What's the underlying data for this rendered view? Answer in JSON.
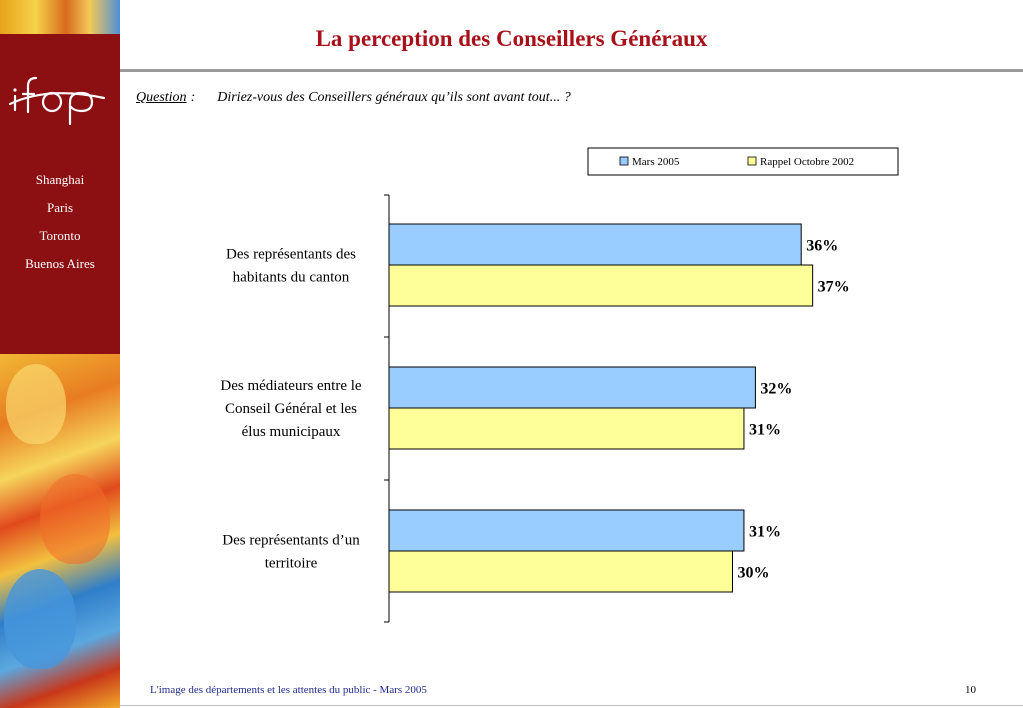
{
  "title": "La perception des Conseillers Généraux",
  "question": {
    "label": "Question",
    "separator": ":",
    "text": "Diriez-vous des Conseillers généraux qu’ils sont avant tout... ?"
  },
  "sidebar": {
    "cities": [
      "Shanghai",
      "Paris",
      "Toronto",
      "Buenos Aires"
    ]
  },
  "colors": {
    "brand_red": "#8c0f12",
    "title_red": "#a8111a",
    "series_blue": "#99ccff",
    "series_yellow": "#ffff99"
  },
  "chart_data": {
    "type": "bar",
    "orientation": "horizontal",
    "categories": [
      [
        "Des représentants des",
        "habitants du canton"
      ],
      [
        "Des médiateurs entre le",
        "Conseil Général et les",
        "élus municipaux"
      ],
      [
        "Des représentants d’un",
        "territoire"
      ]
    ],
    "series": [
      {
        "name": "Mars 2005",
        "values": [
          36,
          32,
          31
        ],
        "labels": [
          "36%",
          "32%",
          "31%"
        ],
        "color": "#99ccff"
      },
      {
        "name": "Rappel Octobre 2002",
        "values": [
          37,
          31,
          30
        ],
        "labels": [
          "37%",
          "31%",
          "30%"
        ],
        "color": "#ffff99"
      }
    ],
    "xlim": [
      0,
      100
    ],
    "grid": false,
    "legend": "top-right"
  },
  "footer": {
    "text": "L'image des départements et les attentes du public - Mars 2005",
    "page": "10"
  }
}
